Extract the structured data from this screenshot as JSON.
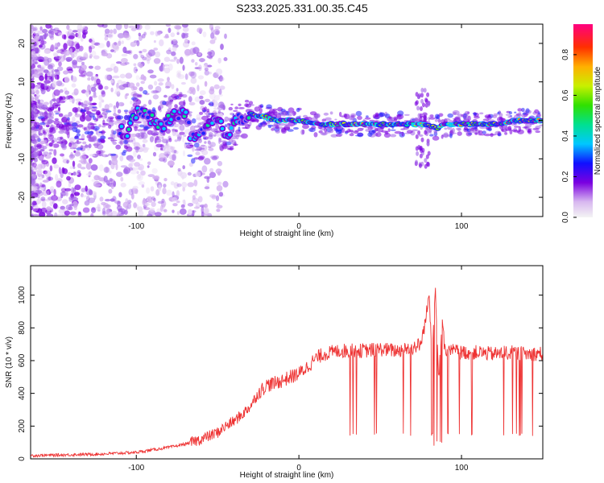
{
  "title": "S233.2025.331.00.35.C45",
  "chart_data": [
    {
      "type": "heatmap",
      "xlabel": "Height of straight line (km)",
      "ylabel": "Frequency (Hz)",
      "xlim": [
        -165,
        150
      ],
      "ylim": [
        -25,
        25
      ],
      "xticks": [
        -100,
        0,
        100
      ],
      "yticks": [
        -20,
        -10,
        0,
        10,
        20
      ],
      "ridge_frequency": [
        [
          -160,
          -3
        ],
        [
          -150,
          0
        ],
        [
          -140,
          -2
        ],
        [
          -130,
          -1
        ],
        [
          -120,
          -3
        ],
        [
          -105,
          -3
        ],
        [
          -100,
          2
        ],
        [
          -95,
          2
        ],
        [
          -90,
          0
        ],
        [
          -85,
          -2
        ],
        [
          -80,
          0
        ],
        [
          -75,
          2
        ],
        [
          -70,
          2
        ],
        [
          -66,
          -5
        ],
        [
          -60,
          -4
        ],
        [
          -55,
          -1
        ],
        [
          -50,
          0
        ],
        [
          -45,
          -4
        ],
        [
          -42,
          -2
        ],
        [
          -38,
          0
        ],
        [
          -33,
          1
        ],
        [
          -30,
          2
        ],
        [
          -25,
          1
        ],
        [
          -20,
          1
        ],
        [
          -15,
          0
        ],
        [
          -10,
          0
        ],
        [
          -5,
          0
        ],
        [
          0,
          0
        ],
        [
          10,
          -1
        ],
        [
          20,
          -1
        ],
        [
          40,
          -1
        ],
        [
          60,
          -1
        ],
        [
          70,
          -1
        ],
        [
          78,
          -1
        ],
        [
          85,
          -2
        ],
        [
          90,
          -1
        ],
        [
          100,
          -1
        ],
        [
          120,
          -1
        ],
        [
          135,
          0
        ],
        [
          150,
          0
        ]
      ],
      "colorbar": {
        "label": "Normalized spectral amplitude",
        "range": [
          0,
          0.95
        ],
        "ticks": [
          "0.0",
          "0.2",
          "0.4",
          "0.6",
          "0.8"
        ]
      }
    },
    {
      "type": "line",
      "xlabel": "Height of straight line (km)",
      "ylabel": "SNR (10 * v/v)",
      "xlim": [
        -165,
        150
      ],
      "ylim": [
        0,
        1180
      ],
      "xticks": [
        -100,
        0,
        100
      ],
      "yticks": [
        0,
        200,
        400,
        600,
        800,
        1000
      ],
      "color": "#ee3333",
      "series": [
        {
          "name": "SNR",
          "x": [
            -165,
            -140,
            -120,
            -100,
            -80,
            -70,
            -60,
            -50,
            -45,
            -40,
            -35,
            -30,
            -25,
            -20,
            -15,
            -10,
            -5,
            0,
            5,
            10,
            15,
            20,
            25,
            30,
            40,
            50,
            60,
            70,
            75,
            78,
            80,
            82,
            84,
            86,
            88,
            90,
            95,
            100,
            110,
            120,
            130,
            140,
            150
          ],
          "values": [
            20,
            25,
            30,
            40,
            70,
            90,
            120,
            160,
            200,
            230,
            270,
            320,
            400,
            450,
            460,
            480,
            500,
            520,
            560,
            610,
            640,
            650,
            660,
            660,
            660,
            670,
            660,
            680,
            700,
            850,
            1000,
            650,
            1050,
            450,
            850,
            650,
            660,
            650,
            650,
            640,
            650,
            640,
            645
          ]
        }
      ]
    }
  ]
}
